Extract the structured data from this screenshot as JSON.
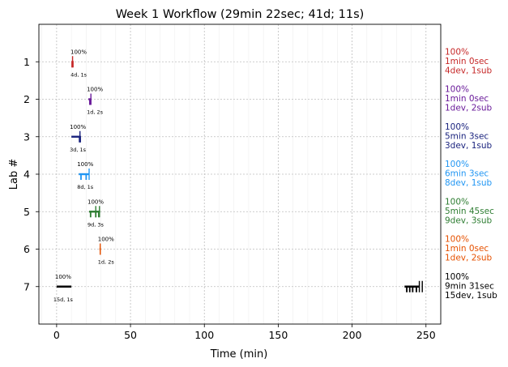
{
  "chart_data": {
    "type": "timeline",
    "title": "Week 1 Workflow (29min 22sec; 41d; 11s)",
    "xlabel": "Time (min)",
    "ylabel": "Lab #",
    "xlim": [
      -12,
      260
    ],
    "xticks": [
      0,
      50,
      100,
      150,
      200,
      250
    ],
    "ylim": [
      8,
      0
    ],
    "yticks": [
      1,
      2,
      3,
      4,
      5,
      6,
      7
    ],
    "grid": true,
    "labs": [
      {
        "lab": 1,
        "color": "#c62828",
        "events": [
          [
            10.5,
            11.2
          ]
        ],
        "bars": [
          [
            10.0,
            11.5
          ]
        ],
        "ticks": [
          10.8
        ],
        "percent": "100%",
        "counts": "4d, 1s",
        "side_lines": [
          "100%",
          "1min 0sec",
          "4dev, 1sub"
        ]
      },
      {
        "lab": 2,
        "color": "#6a1b9a",
        "events": [
          [
            21.5,
            23.0
          ]
        ],
        "bars": [
          [
            22.0,
            23.5
          ]
        ],
        "ticks": [
          23.2
        ],
        "percent": "100%",
        "counts": "1d, 2s",
        "side_lines": [
          "100%",
          "1min 0sec",
          "1dev, 2sub"
        ]
      },
      {
        "lab": 3,
        "color": "#1a237e",
        "events": [
          [
            10.0,
            16.0
          ]
        ],
        "bars": [
          [
            15.0,
            16.5
          ]
        ],
        "ticks": [
          15.8
        ],
        "percent": "100%",
        "counts": "3d, 1s",
        "side_lines": [
          "100%",
          "5min 3sec",
          "3dev, 1sub"
        ]
      },
      {
        "lab": 4,
        "color": "#2196f3",
        "events": [
          [
            15.0,
            22.0
          ]
        ],
        "bars": [
          [
            16.0,
            17.0
          ],
          [
            19.5,
            20.5
          ]
        ],
        "ticks": [
          22.0
        ],
        "percent": "100%",
        "counts": "8d, 1s",
        "side_lines": [
          "100%",
          "6min 3sec",
          "8dev, 1sub"
        ]
      },
      {
        "lab": 5,
        "color": "#2e7d32",
        "events": [
          [
            22.0,
            29.5
          ]
        ],
        "bars": [
          [
            22.5,
            23.5
          ],
          [
            26.0,
            27.0
          ],
          [
            28.0,
            28.8
          ]
        ],
        "ticks": [
          26.5,
          29.0
        ],
        "percent": "100%",
        "counts": "9d, 3s",
        "side_lines": [
          "100%",
          "5min 45sec",
          "9dev, 3sub"
        ]
      },
      {
        "lab": 6,
        "color": "#e65100",
        "events": [
          [
            29.0,
            30.0
          ]
        ],
        "bars": [
          [
            29.2,
            29.8
          ]
        ],
        "ticks": [
          29.5
        ],
        "percent": "100%",
        "counts": "1d, 2s",
        "side_lines": [
          "100%",
          "1min 0sec",
          "1dev, 2sub"
        ]
      },
      {
        "lab": 7,
        "color": "#000000",
        "events": [
          [
            0,
            10.0
          ],
          [
            235.5,
            245.5
          ]
        ],
        "bars": [
          [
            236.5,
            237.5
          ],
          [
            238.5,
            239.5
          ],
          [
            240.5,
            241.5
          ],
          [
            243.0,
            244.0
          ]
        ],
        "ticks": [
          245.5,
          247.5
        ],
        "percent": "100%",
        "counts": "15d, 1s",
        "side_lines": [
          "100%",
          "9min 31sec",
          "15dev, 1sub"
        ]
      }
    ]
  }
}
